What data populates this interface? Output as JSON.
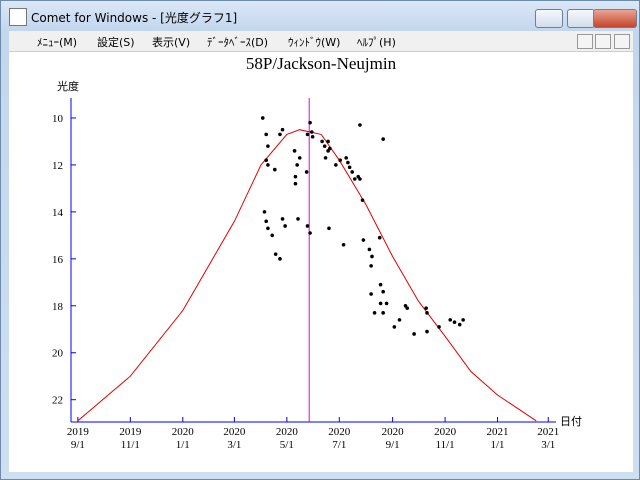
{
  "window": {
    "title": "Comet for Windows - [光度グラフ1]"
  },
  "menu": [
    "ﾒﾆｭｰ(M)",
    "設定(S)",
    "表示(V)",
    "ﾃﾞｰﾀﾍﾞｰｽ(D)",
    "ｳｨﾝﾄﾞｳ(W)",
    "ﾍﾙﾌﾟ(H)"
  ],
  "chart_data": {
    "type": "scatter",
    "title": "58P/Jackson-Neujmin",
    "y_label": "光度",
    "x_label": "日付",
    "axis_color": "#0000ff",
    "y_inverted": true,
    "xlim": [
      "2019-08-24",
      "2021-03-10"
    ],
    "ylim": [
      9.15,
      22.95
    ],
    "xticks": [
      {
        "value": "2019-09-01",
        "label": "2019\n9/1"
      },
      {
        "value": "2019-11-01",
        "label": "2019\n11/1"
      },
      {
        "value": "2020-01-01",
        "label": "2020\n1/1"
      },
      {
        "value": "2020-03-01",
        "label": "2020\n3/1"
      },
      {
        "value": "2020-05-01",
        "label": "2020\n5/1"
      },
      {
        "value": "2020-07-01",
        "label": "2020\n7/1"
      },
      {
        "value": "2020-09-01",
        "label": "2020\n9/1"
      },
      {
        "value": "2020-11-01",
        "label": "2020\n11/1"
      },
      {
        "value": "2021-01-01",
        "label": "2021\n1/1"
      },
      {
        "value": "2021-03-01",
        "label": "2021\n3/1"
      }
    ],
    "yticks": [
      10,
      12,
      14,
      16,
      18,
      20,
      22
    ],
    "reference_line": {
      "x": "2020-05-27",
      "color": "#e000e0"
    },
    "series": [
      {
        "kind": "line",
        "color": "#e00000",
        "x": [
          "2019-09-01",
          "2019-11-01",
          "2020-01-01",
          "2020-03-01",
          "2020-04-01",
          "2020-05-01",
          "2020-05-16",
          "2020-06-10",
          "2020-07-01",
          "2020-08-01",
          "2020-09-01",
          "2020-10-01",
          "2020-11-01",
          "2020-12-01",
          "2021-01-01",
          "2021-02-15"
        ],
        "values": [
          22.9,
          21.0,
          18.2,
          14.4,
          12.0,
          10.7,
          10.5,
          10.7,
          11.8,
          13.7,
          15.9,
          17.8,
          19.3,
          20.8,
          21.8,
          22.9
        ]
      },
      {
        "kind": "points",
        "color": "#000000",
        "x": [
          "2020-04-03",
          "2020-04-07",
          "2020-04-09",
          "2020-04-07",
          "2020-04-09",
          "2020-04-17",
          "2020-04-23",
          "2020-04-26",
          "2020-05-10",
          "2020-05-13",
          "2020-05-11",
          "2020-05-11",
          "2020-05-16",
          "2020-05-24",
          "2020-05-28",
          "2020-05-30",
          "2020-05-25",
          "2020-05-31",
          "2020-06-11",
          "2020-06-14",
          "2020-06-18",
          "2020-06-20",
          "2020-06-18",
          "2020-06-15",
          "2020-06-27",
          "2020-07-02",
          "2020-07-09",
          "2020-07-11",
          "2020-07-13",
          "2020-07-16",
          "2020-07-19",
          "2020-07-23",
          "2020-07-25",
          "2020-07-25",
          "2020-07-28",
          "2020-08-21",
          "2020-04-05",
          "2020-04-07",
          "2020-04-09",
          "2020-04-14",
          "2020-04-18",
          "2020-04-23",
          "2020-04-26",
          "2020-04-29",
          "2020-05-14",
          "2020-05-25",
          "2020-05-28",
          "2020-06-19",
          "2020-07-06",
          "2020-07-29",
          "2020-08-05",
          "2020-08-08",
          "2020-08-07",
          "2020-08-07",
          "2020-08-11",
          "2020-08-17",
          "2020-08-18",
          "2020-08-21",
          "2020-08-18",
          "2020-08-21",
          "2020-08-25",
          "2020-09-03",
          "2020-09-09",
          "2020-09-16",
          "2020-09-18",
          "2020-09-26",
          "2020-10-10",
          "2020-10-11",
          "2020-10-11",
          "2020-10-25",
          "2020-11-07",
          "2020-11-12",
          "2020-11-18",
          "2020-11-22"
        ],
        "values": [
          10.0,
          10.7,
          11.2,
          11.8,
          12.0,
          12.2,
          10.7,
          10.5,
          11.4,
          12.0,
          12.5,
          12.8,
          11.7,
          12.3,
          10.2,
          10.6,
          10.7,
          10.8,
          11.0,
          11.2,
          11.0,
          11.3,
          11.4,
          11.7,
          12.0,
          11.8,
          11.7,
          11.9,
          12.1,
          12.3,
          12.6,
          12.5,
          10.3,
          12.6,
          13.5,
          10.9,
          14.0,
          14.4,
          14.7,
          15.0,
          15.8,
          16.0,
          14.3,
          14.6,
          14.3,
          14.6,
          14.9,
          14.7,
          15.4,
          15.2,
          15.6,
          15.9,
          16.3,
          17.5,
          18.3,
          15.1,
          17.1,
          17.4,
          17.9,
          18.3,
          17.9,
          18.9,
          18.6,
          18.0,
          18.1,
          19.2,
          18.1,
          18.3,
          19.1,
          18.9,
          18.6,
          18.7,
          18.8,
          18.6
        ]
      }
    ]
  }
}
